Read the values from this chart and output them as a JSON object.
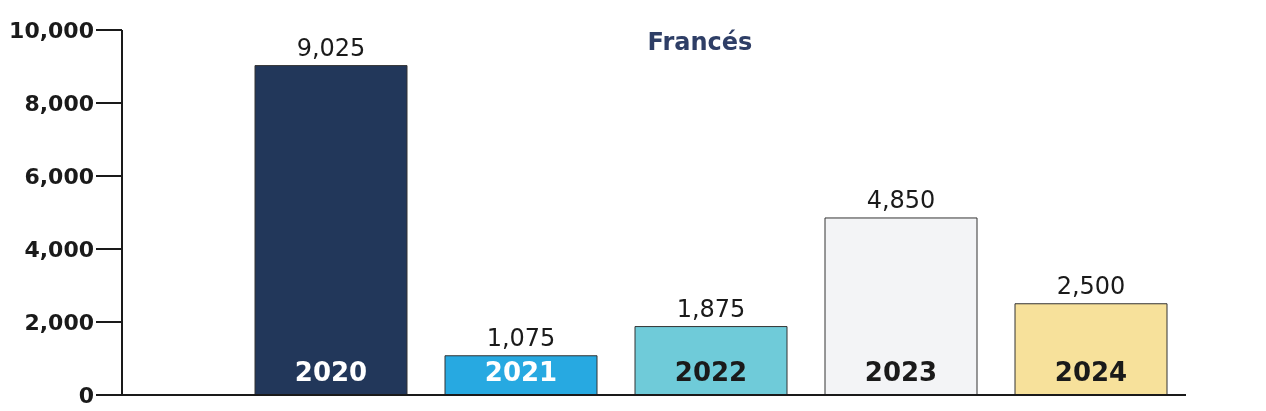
{
  "chart_data": {
    "type": "bar",
    "title": "Francés",
    "categories": [
      "2020",
      "2021",
      "2022",
      "2023",
      "2024"
    ],
    "values": [
      9025,
      1075,
      1875,
      4850,
      2500
    ],
    "value_labels": [
      "9,025",
      "1,075",
      "1,875",
      "4,850",
      "2,500"
    ],
    "colors": [
      "#22375a",
      "#27a9e1",
      "#6fcbd9",
      "#f3f4f6",
      "#f7e19b"
    ],
    "ylim": [
      0,
      10000
    ],
    "yticks": [
      0,
      {
        "value": 2000,
        "label": "2,000"
      },
      {
        "value": 4000,
        "label": "4,000"
      },
      {
        "value": 6000,
        "label": "6,000"
      },
      {
        "value": 8000,
        "label": "8,000"
      },
      {
        "value": 10000,
        "label": "10,000"
      }
    ]
  }
}
